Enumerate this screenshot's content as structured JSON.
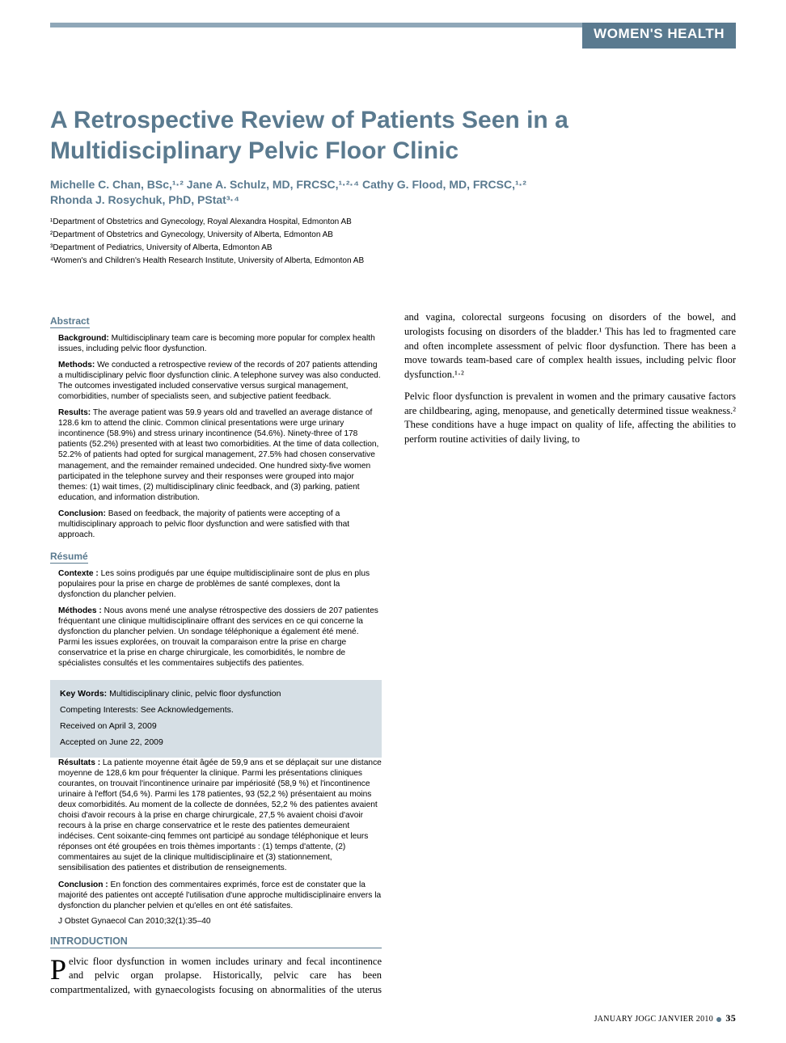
{
  "header": {
    "section_label": "WOMEN'S HEALTH",
    "bar_left_color": "#8fa7b8",
    "bar_right_color": "#5a7a8f"
  },
  "title": "A Retrospective Review of Patients Seen in a Multidisciplinary Pelvic Floor Clinic",
  "authors_line1": "Michelle C. Chan, BSc,¹·² Jane A. Schulz, MD, FRCSC,¹·²·⁴ Cathy G. Flood, MD, FRCSC,¹·²",
  "authors_line2": "Rhonda J. Rosychuk, PhD, PStat³·⁴",
  "affiliations": [
    "¹Department of Obstetrics and Gynecology, Royal Alexandra Hospital, Edmonton AB",
    "²Department of Obstetrics and Gynecology, University of Alberta, Edmonton AB",
    "³Department of Pediatrics, University of Alberta, Edmonton AB",
    "⁴Women's and Children's Health Research Institute, University of Alberta, Edmonton AB"
  ],
  "abstract": {
    "heading": "Abstract",
    "items": [
      {
        "label": "Background:",
        "text": " Multidisciplinary team care is becoming more popular for complex health issues, including pelvic floor dysfunction."
      },
      {
        "label": "Methods:",
        "text": " We conducted a retrospective review of the records of 207 patients attending a multidisciplinary pelvic floor dysfunction clinic. A telephone survey was also conducted. The outcomes investigated included conservative versus surgical management, comorbidities, number of specialists seen, and subjective patient feedback."
      },
      {
        "label": "Results:",
        "text": " The average patient was 59.9 years old and travelled an average distance of 128.6 km to attend the clinic. Common clinical presentations were urge urinary incontinence (58.9%) and stress urinary incontinence (54.6%). Ninety-three of 178 patients (52.2%) presented with at least two comorbidities. At the time of data collection, 52.2% of patients had opted for surgical management, 27.5% had chosen conservative management, and the remainder remained undecided. One hundred sixty-five women participated in the telephone survey and their responses were grouped into major themes: (1) wait times, (2) multidisciplinary clinic feedback, and (3) parking, patient education, and information distribution."
      },
      {
        "label": "Conclusion:",
        "text": " Based on feedback, the majority of patients were accepting of a multidisciplinary approach to pelvic floor dysfunction and were satisfied with that approach."
      }
    ]
  },
  "resume": {
    "heading": "Résumé",
    "items": [
      {
        "label": "Contexte :",
        "text": " Les soins prodigués par une équipe multidisciplinaire sont de plus en plus populaires pour la prise en charge de problèmes de santé complexes, dont la dysfonction du plancher pelvien."
      },
      {
        "label": "Méthodes :",
        "text": " Nous avons mené une analyse rétrospective des dossiers de 207 patientes fréquentant une clinique multidisciplinaire offrant des services en ce qui concerne la dysfonction du plancher pelvien. Un sondage téléphonique a également été mené. Parmi les issues explorées, on trouvait la comparaison entre la prise en charge conservatrice et la prise en charge chirurgicale, les comorbidités, le nombre de spécialistes consultés et les commentaires subjectifs des patientes."
      },
      {
        "label": "Résultats :",
        "text": " La patiente moyenne était âgée de 59,9 ans et se déplaçait sur une distance moyenne de 128,6 km pour fréquenter la clinique. Parmi les présentations cliniques courantes, on trouvait l'incontinence urinaire par impériosité (58,9 %) et l'incontinence urinaire à l'effort (54,6 %). Parmi les 178 patientes, 93 (52,2 %) présentaient au moins deux comorbidités. Au moment de la collecte de données, 52,2 % des patientes avaient choisi d'avoir recours à la prise en charge chirurgicale, 27,5 % avaient choisi d'avoir recours à la prise en charge conservatrice et le reste des patientes demeuraient indécises. Cent soixante-cinq femmes ont participé au sondage téléphonique et leurs réponses ont été groupées en trois thèmes importants : (1) temps d'attente, (2) commentaires au sujet de la clinique multidisciplinaire et (3) stationnement, sensibilisation des patientes et distribution de renseignements."
      },
      {
        "label": "Conclusion :",
        "text": " En fonction des commentaires exprimés, force est de constater que la majorité des patientes ont accepté l'utilisation d'une approche multidisciplinaire envers la dysfonction du plancher pelvien et qu'elles en ont été satisfaites."
      }
    ]
  },
  "citation": "J Obstet Gynaecol Can 2010;32(1):35–40",
  "introduction": {
    "heading": "INTRODUCTION",
    "para1_first": "P",
    "para1_rest": "elvic floor dysfunction in women includes urinary and fecal incontinence and pelvic organ prolapse. Historically, pelvic care has been compartmentalized, with gynaecologists focusing on abnormalities of the uterus and vagina, colorectal surgeons focusing on disorders of the bowel, and urologists focusing on disorders of the bladder.¹ This has led to fragmented care and often incomplete assessment of pelvic floor dysfunction. There has been a move towards team-based care of complex health issues, including pelvic floor dysfunction.¹·²",
    "para2": "Pelvic floor dysfunction is prevalent in women and the primary causative factors are childbearing, aging, menopause, and genetically determined tissue weakness.² These conditions have a huge impact on quality of life, affecting the abilities to perform routine activities of daily living, to"
  },
  "keybox": {
    "keywords_label": "Key Words:",
    "keywords": " Multidisciplinary clinic, pelvic floor dysfunction",
    "competing": "Competing Interests: See Acknowledgements.",
    "received": "Received on April 3, 2009",
    "accepted": "Accepted on June 22, 2009",
    "bg_color": "#d6dfe5"
  },
  "footer": {
    "text_left": "JANUARY JOGC JANVIER 2010",
    "page": "35"
  },
  "colors": {
    "accent": "#5a7a8f",
    "text": "#000000"
  }
}
